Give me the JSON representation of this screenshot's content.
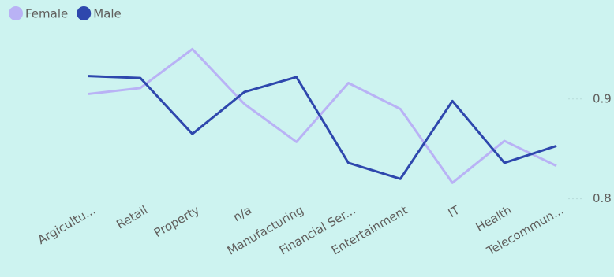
{
  "chart_data": {
    "type": "line",
    "categories": [
      "Argicultu...",
      "Retail",
      "Property",
      "n/a",
      "Manufacturing",
      "Financial Ser...",
      "Entertainment",
      "IT",
      "Health",
      "Telecommun..."
    ],
    "series": [
      {
        "name": "Female",
        "color": "#b9b2f5",
        "values": [
          0.905,
          0.911,
          0.95,
          0.895,
          0.857,
          0.916,
          0.89,
          0.816,
          0.858,
          0.833
        ]
      },
      {
        "name": "Male",
        "color": "#2e47ad",
        "values": [
          0.923,
          0.921,
          0.865,
          0.907,
          0.922,
          0.836,
          0.82,
          0.898,
          0.836,
          0.853
        ]
      }
    ],
    "ylim": [
      0.78,
      0.97
    ],
    "yticks": [
      0.8,
      0.9
    ],
    "grid": true,
    "legend": "top-left",
    "y_axis_side": "right"
  }
}
